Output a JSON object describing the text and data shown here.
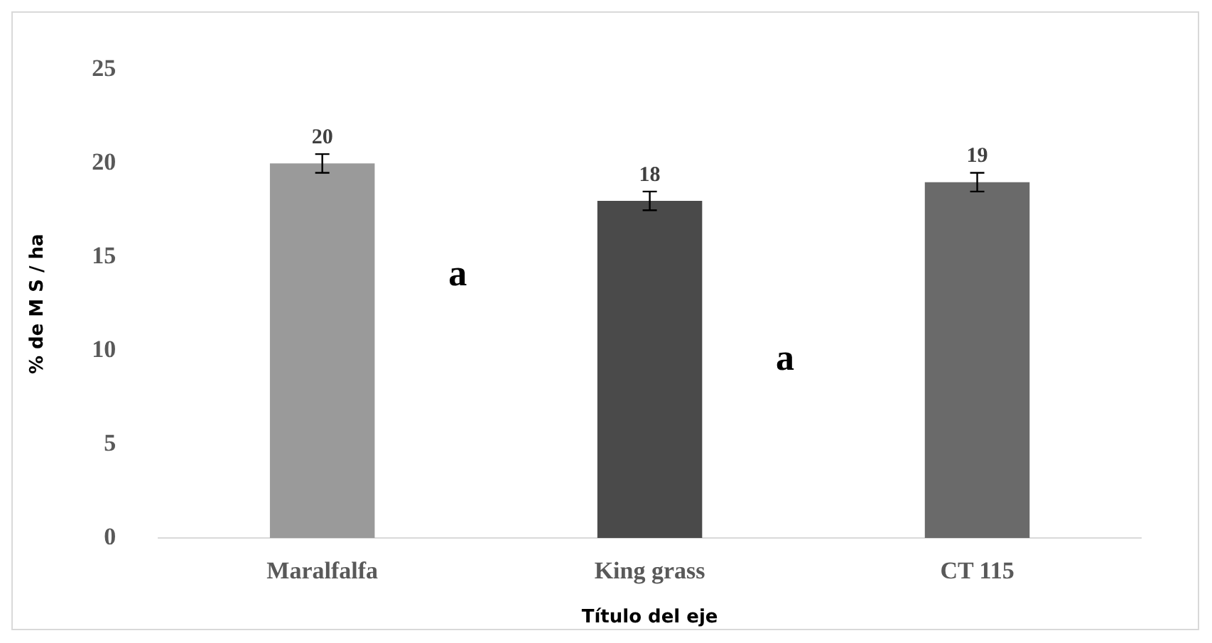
{
  "chart_data": {
    "type": "bar",
    "xlabel": "Título del eje",
    "ylabel": "% de M S / ha",
    "categories": [
      "Maralfalfa",
      "King grass",
      "CT 115"
    ],
    "values": [
      20,
      18,
      19
    ],
    "errors": [
      0.5,
      0.5,
      0.5
    ],
    "colors": [
      "#9a9a9a",
      "#4a4a4a",
      "#6a6a6a"
    ],
    "ylim": [
      0,
      25
    ],
    "yticks": [
      0,
      5,
      10,
      15,
      20,
      25
    ],
    "grid": false,
    "legend": false,
    "data_labels": true,
    "annotations": [
      "a",
      "a"
    ]
  }
}
